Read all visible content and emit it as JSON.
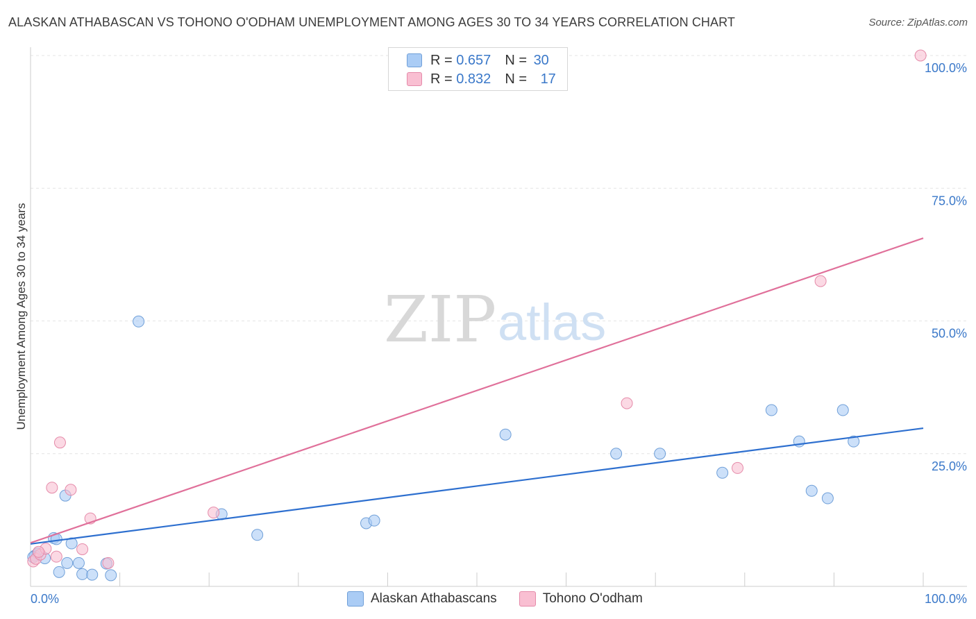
{
  "title": "ALASKAN ATHABASCAN VS TOHONO O'ODHAM UNEMPLOYMENT AMONG AGES 30 TO 34 YEARS CORRELATION CHART",
  "source": "Source: ZipAtlas.com",
  "watermark": {
    "zip": "ZIP",
    "atlas": "atlas"
  },
  "legend": {
    "rows": [
      {
        "r_label": "R = ",
        "r_value": "0.657",
        "n_label": "N = ",
        "n_value": "30"
      },
      {
        "r_label": "R = ",
        "r_value": "0.832",
        "n_label": "N = ",
        "n_value": "17"
      }
    ]
  },
  "bottom_legend": {
    "series1": "Alaskan Athabascans",
    "series2": "Tohono O'odham"
  },
  "chart_data": {
    "type": "scatter",
    "title": "ALASKAN ATHABASCAN VS TOHONO O'ODHAM UNEMPLOYMENT AMONG AGES 30 TO 34 YEARS CORRELATION CHART",
    "xlabel": "",
    "ylabel": "Unemployment Among Ages 30 to 34 years",
    "xlim": [
      0,
      100
    ],
    "ylim": [
      0,
      100
    ],
    "x_tick_labels": [
      "0.0%",
      "100.0%"
    ],
    "y_ticks": [
      25,
      50,
      75,
      100
    ],
    "y_tick_labels": [
      "25.0%",
      "50.0%",
      "75.0%",
      "100.0%"
    ],
    "grid": true,
    "colors": {
      "series1_fill": "#aaccf5",
      "series1_stroke": "#6f9fd8",
      "series1_line": "#2d6fcf",
      "series2_fill": "#f9bfd2",
      "series2_stroke": "#e58aa9",
      "series2_line": "#e0709a",
      "tick_text": "#3a78c9",
      "grid": "#e4e4e4",
      "axis": "#cccccc"
    },
    "series": [
      {
        "name": "Alaskan Athabascans",
        "r": 0.657,
        "n": 30,
        "trend": [
          [
            0,
            8.0
          ],
          [
            100,
            29.8
          ]
        ],
        "points": [
          [
            0.5,
            5.8
          ],
          [
            0.8,
            6.2
          ],
          [
            1.6,
            5.3
          ],
          [
            2.6,
            9.1
          ],
          [
            2.9,
            8.9
          ],
          [
            3.2,
            2.7
          ],
          [
            4.1,
            4.4
          ],
          [
            4.6,
            8.1
          ],
          [
            3.9,
            17.1
          ],
          [
            5.4,
            4.4
          ],
          [
            5.8,
            2.3
          ],
          [
            6.9,
            2.2
          ],
          [
            8.5,
            4.3
          ],
          [
            9.0,
            2.1
          ],
          [
            12.1,
            49.9
          ],
          [
            21.4,
            13.6
          ],
          [
            25.4,
            9.7
          ],
          [
            37.6,
            11.9
          ],
          [
            38.5,
            12.4
          ],
          [
            53.2,
            28.6
          ],
          [
            65.6,
            25.0
          ],
          [
            70.5,
            25.0
          ],
          [
            77.5,
            21.4
          ],
          [
            83.0,
            33.2
          ],
          [
            86.1,
            27.3
          ],
          [
            87.5,
            18.0
          ],
          [
            89.3,
            16.6
          ],
          [
            91.0,
            33.2
          ],
          [
            92.2,
            27.3
          ],
          [
            0.3,
            5.5
          ]
        ]
      },
      {
        "name": "Tohono O'odham",
        "r": 0.832,
        "n": 17,
        "trend": [
          [
            0,
            8.2
          ],
          [
            100,
            65.6
          ]
        ],
        "points": [
          [
            0.3,
            4.7
          ],
          [
            0.6,
            5.2
          ],
          [
            1.1,
            6.0
          ],
          [
            1.7,
            7.1
          ],
          [
            2.4,
            18.6
          ],
          [
            2.9,
            5.6
          ],
          [
            3.3,
            27.1
          ],
          [
            4.5,
            18.2
          ],
          [
            5.8,
            7.0
          ],
          [
            6.7,
            12.8
          ],
          [
            8.7,
            4.4
          ],
          [
            20.5,
            13.9
          ],
          [
            66.8,
            34.5
          ],
          [
            79.2,
            22.3
          ],
          [
            88.5,
            57.5
          ],
          [
            99.7,
            100.0
          ],
          [
            0.9,
            6.5
          ]
        ]
      }
    ]
  }
}
